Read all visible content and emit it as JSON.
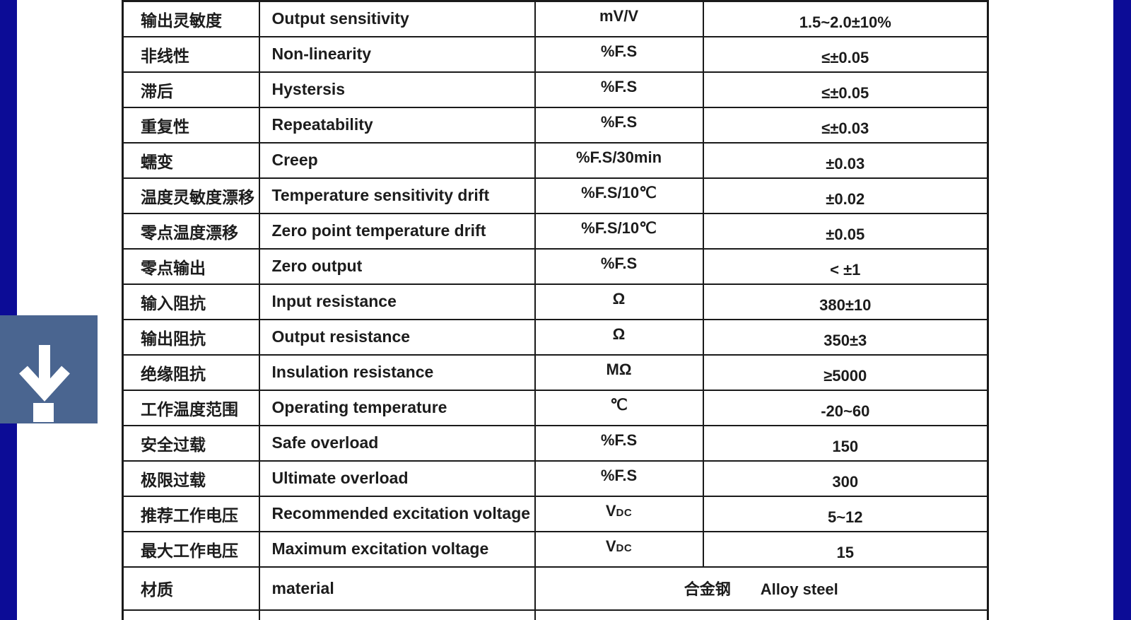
{
  "colors": {
    "navy": "#0c0c96",
    "icon-bg": "#4a6590",
    "line": "#1a1a1a",
    "text": "#1c1c1c",
    "page-bg": "#ffffff"
  },
  "download_button": {
    "icon": "download-icon"
  },
  "table": {
    "columns": {
      "name_cn_width": 193,
      "name_en_width": 390,
      "unit_width": 238,
      "value_width": 403
    },
    "rows": [
      {
        "cn": "输出灵敏度",
        "en": "Output sensitivity",
        "unit": "mV/V",
        "value": "1.5~2.0±10%"
      },
      {
        "cn": "非线性",
        "en": "Non-linearity",
        "unit": "%F.S",
        "value": "≤±0.05"
      },
      {
        "cn": "滞后",
        "en": "Hystersis",
        "unit": "%F.S",
        "value": "≤±0.05"
      },
      {
        "cn": "重复性",
        "en": "Repeatability",
        "unit": "%F.S",
        "value": "≤±0.03"
      },
      {
        "cn": "蠕变",
        "en": "Creep",
        "unit": "%F.S/30min",
        "value": "±0.03"
      },
      {
        "cn": "温度灵敏度漂移",
        "en": "Temperature sensitivity drift",
        "unit": "%F.S/10℃",
        "value": "±0.02"
      },
      {
        "cn": "零点温度漂移",
        "en": "Zero point temperature drift",
        "unit": "%F.S/10℃",
        "value": "±0.05"
      },
      {
        "cn": "零点输出",
        "en": "Zero output",
        "unit": "%F.S",
        "value": "< ±1"
      },
      {
        "cn": "输入阻抗",
        "en": "Input resistance",
        "unit": "Ω",
        "value": "380±10"
      },
      {
        "cn": "输出阻抗",
        "en": "Output resistance",
        "unit": "Ω",
        "value": "350±3"
      },
      {
        "cn": "绝缘阻抗",
        "en": "Insulation resistance",
        "unit": "MΩ",
        "value": "≥5000"
      },
      {
        "cn": "工作温度范围",
        "en": "Operating temperature",
        "unit": "℃",
        "value": "-20~60"
      },
      {
        "cn": "安全过载",
        "en": "Safe overload",
        "unit": "%F.S",
        "value": "150"
      },
      {
        "cn": "极限过载",
        "en": "Ultimate overload",
        "unit": "%F.S",
        "value": "300"
      },
      {
        "cn": "推荐工作电压",
        "en": "Recommended excitation voltage",
        "unit": "V",
        "unit_sub": "DC",
        "value": "5~12"
      },
      {
        "cn": "最大工作电压",
        "en": "Maximum excitation voltage",
        "unit": "V",
        "unit_sub": "DC",
        "value": "15"
      },
      {
        "cn": "材质",
        "en": "material",
        "merged": true,
        "value_cn": "合金钢",
        "value_en": "Alloy steel"
      }
    ],
    "partial_row": {
      "cells": [
        "",
        "",
        ""
      ]
    }
  }
}
